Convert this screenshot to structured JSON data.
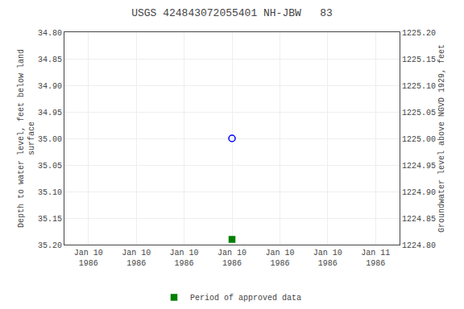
{
  "chart_data": {
    "type": "scatter",
    "title": "USGS 424843072055401 NH-JBW   83",
    "categories": [
      "Jan 10\n1986",
      "Jan 10\n1986",
      "Jan 10\n1986",
      "Jan 10\n1986",
      "Jan 10\n1986",
      "Jan 10\n1986",
      "Jan 11\n1986"
    ],
    "series": [
      {
        "color": "#0000ff",
        "marker": "circle-open",
        "values": [
          null,
          null,
          null,
          35.0,
          null,
          null,
          null
        ]
      },
      {
        "name": "Period of approved data",
        "color": "#008000",
        "marker": "square",
        "values": [
          null,
          null,
          null,
          35.19,
          null,
          null,
          null
        ]
      }
    ],
    "ylabel": "Depth to water level, feet below land\nsurface",
    "y2label": "Groundwater level above NGVD 1929, feet",
    "ylim": [
      35.2,
      34.8
    ],
    "yticks": [
      {
        "value": 34.8,
        "label": "34.80"
      },
      {
        "value": 34.85,
        "label": "34.85"
      },
      {
        "value": 34.9,
        "label": "34.90"
      },
      {
        "value": 34.95,
        "label": "34.95"
      },
      {
        "value": 35.0,
        "label": "35.00"
      },
      {
        "value": 35.05,
        "label": "35.05"
      },
      {
        "value": 35.1,
        "label": "35.10"
      },
      {
        "value": 35.15,
        "label": "35.15"
      },
      {
        "value": 35.2,
        "label": "35.20"
      }
    ],
    "y2lim": [
      1224.8,
      1225.2
    ],
    "y2ticks": [
      {
        "value": 1225.2,
        "label": "1225.20"
      },
      {
        "value": 1225.15,
        "label": "1225.15"
      },
      {
        "value": 1225.1,
        "label": "1225.10"
      },
      {
        "value": 1225.05,
        "label": "1225.05"
      },
      {
        "value": 1225.0,
        "label": "1225.00"
      },
      {
        "value": 1224.95,
        "label": "1224.95"
      },
      {
        "value": 1224.9,
        "label": "1224.90"
      },
      {
        "value": 1224.85,
        "label": "1224.85"
      },
      {
        "value": 1224.8,
        "label": "1224.80"
      }
    ],
    "grid": true,
    "legend": "bottom"
  }
}
